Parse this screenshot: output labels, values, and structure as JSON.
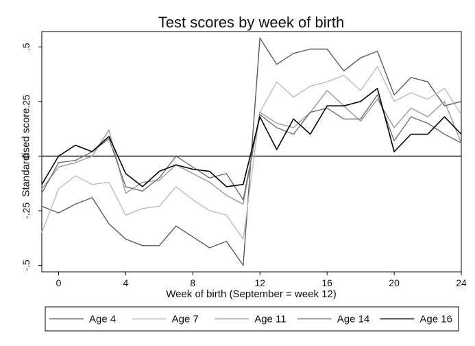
{
  "chart_data": {
    "type": "line",
    "title": "Test scores by week of birth",
    "xlabel": "Week of birth (September = week 12)",
    "ylabel": "Standardised score",
    "xlim": [
      -1,
      24
    ],
    "ylim": [
      -0.53,
      0.57
    ],
    "x_ticks": [
      0,
      4,
      8,
      12,
      16,
      20,
      24
    ],
    "x_tick_labels": [
      "0",
      "4",
      "8",
      "12",
      "16",
      "20",
      "24"
    ],
    "y_ticks": [
      -0.5,
      -0.25,
      0,
      0.25,
      0.5
    ],
    "y_tick_labels": [
      "-.5",
      "-.25",
      "0",
      ".25",
      ".5"
    ],
    "reference_line_y": 0,
    "grid": false,
    "legend_position": "bottom",
    "x": [
      -1,
      0,
      1,
      2,
      3,
      4,
      5,
      6,
      7,
      8,
      9,
      10,
      11,
      12,
      13,
      14,
      15,
      16,
      17,
      18,
      19,
      20,
      21,
      22,
      23,
      24
    ],
    "series": [
      {
        "name": "Age 4",
        "color": "#5a5a5a",
        "width": 1.4,
        "values": [
          -0.23,
          -0.26,
          -0.22,
          -0.19,
          -0.31,
          -0.38,
          -0.41,
          -0.41,
          -0.32,
          -0.37,
          -0.42,
          -0.39,
          -0.5,
          0.54,
          0.42,
          0.47,
          0.49,
          0.49,
          0.39,
          0.45,
          0.48,
          0.28,
          0.36,
          0.34,
          0.23,
          0.25
        ]
      },
      {
        "name": "Age 7",
        "color": "#bdbdbd",
        "width": 1.4,
        "values": [
          -0.35,
          -0.15,
          -0.09,
          -0.13,
          -0.12,
          -0.27,
          -0.24,
          -0.23,
          -0.14,
          -0.2,
          -0.25,
          -0.27,
          -0.38,
          0.2,
          0.34,
          0.27,
          0.32,
          0.34,
          0.37,
          0.3,
          0.41,
          0.25,
          0.29,
          0.26,
          0.31,
          0.19
        ]
      },
      {
        "name": "Age 11",
        "color": "#9a9a9a",
        "width": 1.4,
        "values": [
          -0.15,
          -0.05,
          -0.03,
          0.0,
          0.12,
          -0.17,
          -0.12,
          -0.11,
          -0.04,
          -0.08,
          -0.12,
          -0.18,
          -0.22,
          0.2,
          0.15,
          0.13,
          0.2,
          0.3,
          0.23,
          0.16,
          0.26,
          0.13,
          0.22,
          0.18,
          0.25,
          0.06
        ]
      },
      {
        "name": "Age 14",
        "color": "#6e6e6e",
        "width": 1.4,
        "values": [
          -0.17,
          -0.03,
          -0.02,
          0.02,
          0.08,
          -0.14,
          -0.16,
          -0.1,
          0.0,
          -0.05,
          -0.1,
          -0.08,
          -0.2,
          0.19,
          0.13,
          0.1,
          0.2,
          0.22,
          0.17,
          0.17,
          0.28,
          0.07,
          0.18,
          0.15,
          0.1,
          0.06
        ]
      },
      {
        "name": "Age 16",
        "color": "#000000",
        "width": 1.6,
        "values": [
          -0.13,
          0.0,
          0.05,
          0.02,
          0.09,
          -0.08,
          -0.14,
          -0.07,
          -0.04,
          -0.06,
          -0.07,
          -0.14,
          -0.13,
          0.18,
          0.03,
          0.17,
          0.1,
          0.23,
          0.23,
          0.25,
          0.31,
          0.02,
          0.1,
          0.1,
          0.18,
          0.1
        ]
      }
    ]
  }
}
